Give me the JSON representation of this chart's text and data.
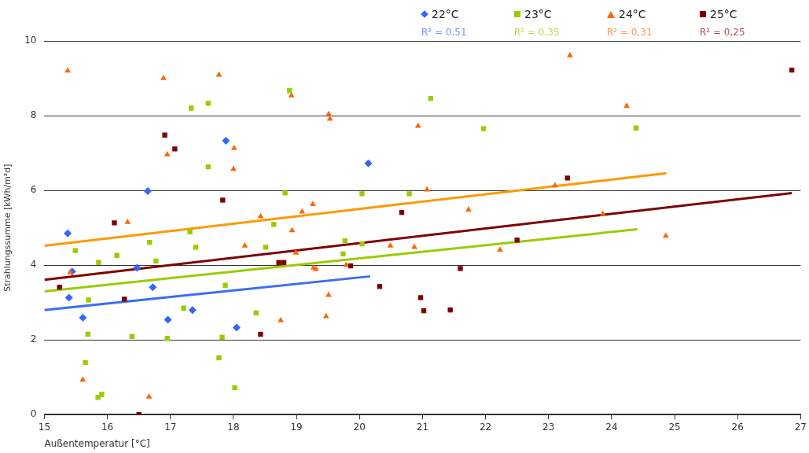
{
  "chart_data": {
    "type": "scatter",
    "xlabel": "Außentemperatur [°C]",
    "ylabel": "Strahlungssumme [kWh/m²d]",
    "xlim": [
      15,
      27
    ],
    "xticks": [
      15,
      16,
      17,
      18,
      19,
      20,
      21,
      22,
      23,
      24,
      25,
      26,
      27
    ],
    "ylim": [
      0,
      10
    ],
    "yticks": [
      0,
      2,
      4,
      6,
      8,
      10
    ],
    "grid": "y",
    "legend": "top",
    "annotations": [
      "R² = 0,51",
      "R² = 0,35",
      "R² = 0,31",
      "R² = 0,25"
    ],
    "series": [
      {
        "name": "22°C",
        "marker": "diamond",
        "color": "#3366ff",
        "x": [
          15.37,
          15.44,
          15.39,
          15.61,
          16.47,
          16.64,
          16.72,
          16.96,
          17.35,
          17.88,
          18.05,
          20.14
        ],
        "values": [
          4.85,
          3.83,
          3.13,
          2.59,
          3.93,
          5.98,
          3.41,
          2.54,
          2.8,
          7.33,
          2.33,
          6.72
        ]
      },
      {
        "name": "23°C",
        "marker": "square",
        "color": "#99cc00",
        "x": [
          15.49,
          15.7,
          15.69,
          15.65,
          15.86,
          15.85,
          15.91,
          16.15,
          16.39,
          16.67,
          16.77,
          16.95,
          17.21,
          17.31,
          17.33,
          17.4,
          17.6,
          17.6,
          17.82,
          17.77,
          17.87,
          18.02,
          18.36,
          18.51,
          18.64,
          18.82,
          18.89,
          19.77,
          19.74,
          20.04,
          20.04,
          20.79,
          21.13,
          21.97,
          24.39
        ],
        "values": [
          4.39,
          3.07,
          2.15,
          1.39,
          4.07,
          0.46,
          0.54,
          4.26,
          2.09,
          4.61,
          4.11,
          2.04,
          2.85,
          4.89,
          8.2,
          4.48,
          8.33,
          6.63,
          2.07,
          1.52,
          3.46,
          0.72,
          2.72,
          4.48,
          5.09,
          5.93,
          8.67,
          4.65,
          4.3,
          5.91,
          4.57,
          5.91,
          8.46,
          7.65,
          7.67
        ]
      },
      {
        "name": "24°C",
        "marker": "triangle",
        "color": "#ff6600",
        "x": [
          15.37,
          15.41,
          15.61,
          16.32,
          16.66,
          16.89,
          16.95,
          17.77,
          18.01,
          18.0,
          18.18,
          18.43,
          18.75,
          18.92,
          18.93,
          18.99,
          19.09,
          19.26,
          19.27,
          19.31,
          19.51,
          19.53,
          19.51,
          19.47,
          19.79,
          20.49,
          20.87,
          20.93,
          21.07,
          21.73,
          22.23,
          23.1,
          23.34,
          23.86,
          24.24,
          24.86
        ],
        "values": [
          9.2,
          3.8,
          0.93,
          5.15,
          0.48,
          9.0,
          6.96,
          9.09,
          7.13,
          6.57,
          4.52,
          5.3,
          2.52,
          8.54,
          4.93,
          4.33,
          5.43,
          5.63,
          3.93,
          3.89,
          8.04,
          7.91,
          3.2,
          2.63,
          4.0,
          4.52,
          4.48,
          7.72,
          6.02,
          5.48,
          4.41,
          6.13,
          9.61,
          5.37,
          8.26,
          4.78
        ]
      },
      {
        "name": "25°C",
        "marker": "square",
        "color": "#800000",
        "x": [
          15.24,
          16.11,
          16.27,
          16.5,
          16.91,
          17.07,
          17.83,
          18.43,
          18.72,
          18.8,
          19.86,
          20.32,
          20.67,
          20.97,
          21.02,
          21.44,
          21.6,
          22.5,
          23.3,
          26.86
        ],
        "values": [
          3.41,
          5.13,
          3.09,
          0,
          7.48,
          7.11,
          5.74,
          2.15,
          4.07,
          4.07,
          3.98,
          3.43,
          5.41,
          3.13,
          2.78,
          2.8,
          3.91,
          4.67,
          6.33,
          9.22
        ]
      },
      {
        "type": "line",
        "color": "#3b6cf5",
        "x": [
          15,
          20.17
        ],
        "values": [
          2.8,
          3.7
        ]
      },
      {
        "type": "line",
        "color": "#99cc00",
        "x": [
          15,
          24.41
        ],
        "values": [
          3.3,
          4.96
        ]
      },
      {
        "type": "line",
        "color": "#ff9900",
        "x": [
          15,
          24.87
        ],
        "values": [
          4.52,
          6.46
        ]
      },
      {
        "type": "line",
        "color": "#7f0000",
        "x": [
          15,
          26.86
        ],
        "values": [
          3.61,
          5.93
        ]
      }
    ]
  }
}
